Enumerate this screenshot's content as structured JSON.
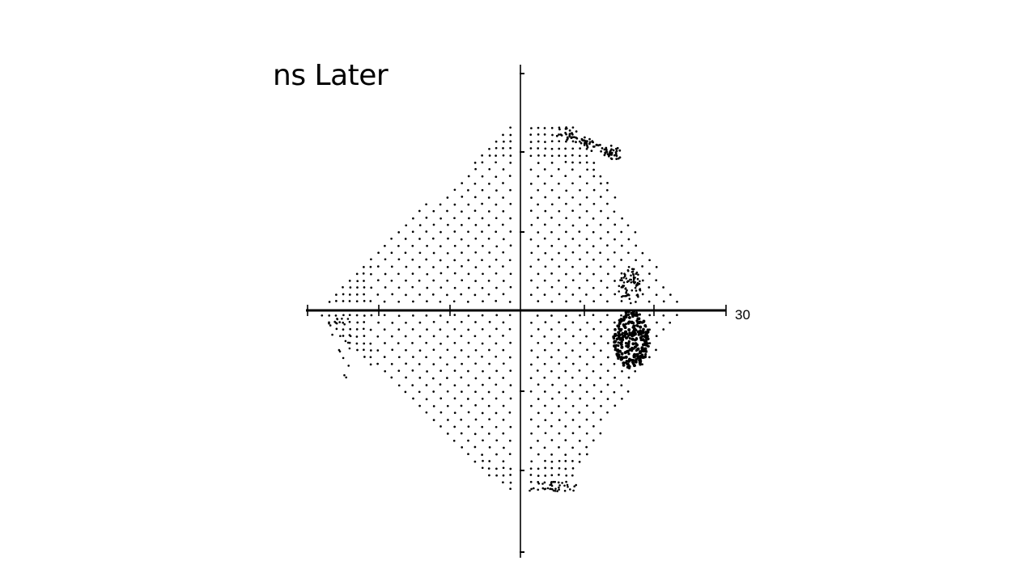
{
  "slide": {
    "title": "ns Later"
  },
  "chart_data": {
    "type": "scatter",
    "title": "",
    "xlabel": "",
    "ylabel": "",
    "x_tick_label_right": "30",
    "xlim": [
      -30,
      30
    ],
    "ylim": [
      -30,
      30
    ],
    "grid": false,
    "legend": "none",
    "series": [
      {
        "values_description": "",
        "points": []
      }
    ],
    "dot_color": "#000000",
    "axis_color": "#000000"
  }
}
